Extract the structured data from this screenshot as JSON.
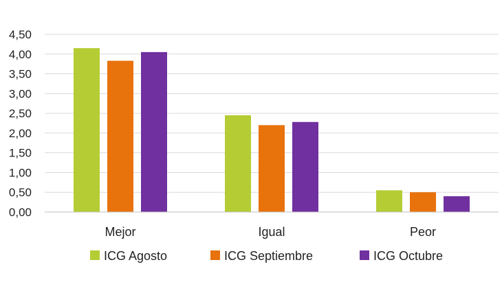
{
  "chart_data": {
    "type": "bar",
    "categories": [
      "Mejor",
      "Igual",
      "Peor"
    ],
    "series": [
      {
        "name": "ICG Agosto",
        "values": [
          4.15,
          2.45,
          0.55
        ],
        "color": "#b5cc34"
      },
      {
        "name": "ICG Septiembre",
        "values": [
          3.83,
          2.2,
          0.5
        ],
        "color": "#e8720c"
      },
      {
        "name": "ICG Octubre",
        "values": [
          4.05,
          2.28,
          0.4
        ],
        "color": "#7030a0"
      }
    ],
    "ylim": [
      0,
      4.5
    ],
    "yticks": [
      "0,00",
      "0,50",
      "1,00",
      "1,50",
      "2,00",
      "2,50",
      "3,00",
      "3,50",
      "4,00",
      "4,50"
    ],
    "ytick_values": [
      0,
      0.5,
      1,
      1.5,
      2,
      2.5,
      3,
      3.5,
      4,
      4.5
    ],
    "grid": true,
    "gridColor": "#d9d9d9",
    "legend": "bottom"
  }
}
